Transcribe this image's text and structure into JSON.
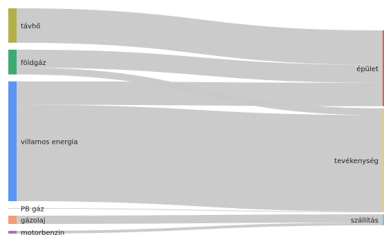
{
  "chart_data": {
    "type": "sankey",
    "unit": "",
    "title": "",
    "sources": [
      {
        "id": "tavho",
        "label": "távhő",
        "color": "#b3b04a"
      },
      {
        "id": "foldgaz",
        "label": "földgáz",
        "color": "#3eaa72"
      },
      {
        "id": "villamos",
        "label": "villamos energia",
        "color": "#5b95f5"
      },
      {
        "id": "pbgaz",
        "label": "PB gáz",
        "color": "#d0d0d0"
      },
      {
        "id": "gazolaj",
        "label": "gázolaj",
        "color": "#f59a79"
      },
      {
        "id": "motorbenzin",
        "label": "motorbenzin",
        "color": "#b267c8"
      }
    ],
    "targets": [
      {
        "id": "epulet",
        "label": "épület",
        "color": "#e05b5b"
      },
      {
        "id": "tevekenyseg",
        "label": "tevékenység",
        "color": "#f2cf46"
      },
      {
        "id": "szallitas",
        "label": "szállítás",
        "color": "#6fc7d6"
      }
    ],
    "links": [
      {
        "source": "tavho",
        "target": "epulet",
        "value": 50
      },
      {
        "source": "foldgaz",
        "target": "epulet",
        "value": 26
      },
      {
        "source": "foldgaz",
        "target": "tevekenyseg",
        "value": 10
      },
      {
        "source": "villamos",
        "target": "epulet",
        "value": 34
      },
      {
        "source": "villamos",
        "target": "tevekenyseg",
        "value": 140
      },
      {
        "source": "pbgaz",
        "target": "tevekenyseg",
        "value": 1
      },
      {
        "source": "gazolaj",
        "target": "szallitas",
        "value": 12
      },
      {
        "source": "motorbenzin",
        "target": "szallitas",
        "value": 4
      }
    ]
  }
}
